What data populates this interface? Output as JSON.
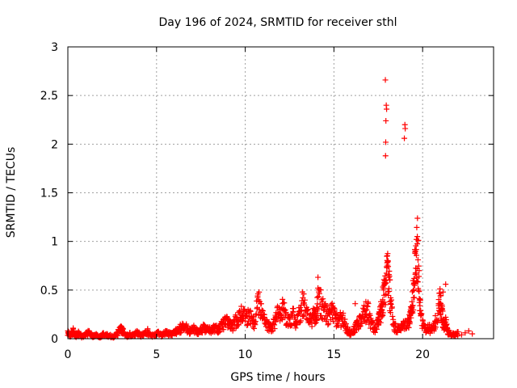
{
  "chart_data": {
    "type": "scatter",
    "title": "Day 196 of 2024, SRMTID for receiver sthl",
    "xlabel": "GPS time / hours",
    "ylabel": "SRMTID / TECUs",
    "xlim": [
      0,
      24
    ],
    "ylim": [
      0,
      3
    ],
    "xticks": [
      0,
      5,
      10,
      15,
      20
    ],
    "xtick_labels": [
      "0",
      "5",
      "10",
      "15",
      "20"
    ],
    "yticks": [
      0,
      0.5,
      1,
      1.5,
      2,
      2.5,
      3
    ],
    "ytick_labels": [
      "0",
      "0.5",
      "1",
      "1.5",
      "2",
      "2.5",
      "3"
    ],
    "grid": true,
    "marker": "+",
    "color": "#ff0000",
    "series": [
      {
        "name": "SRMTID",
        "points": [
          [
            0.0,
            0.08
          ],
          [
            0.15,
            0.05
          ],
          [
            0.3,
            0.1
          ],
          [
            0.45,
            0.04
          ],
          [
            0.6,
            0.07
          ],
          [
            0.8,
            0.03
          ],
          [
            1.0,
            0.06
          ],
          [
            1.2,
            0.08
          ],
          [
            1.4,
            0.04
          ],
          [
            1.6,
            0.05
          ],
          [
            1.8,
            0.03
          ],
          [
            2.0,
            0.06
          ],
          [
            2.2,
            0.05
          ],
          [
            2.4,
            0.04
          ],
          [
            2.6,
            0.03
          ],
          [
            2.8,
            0.07
          ],
          [
            3.0,
            0.13
          ],
          [
            3.1,
            0.1
          ],
          [
            3.3,
            0.04
          ],
          [
            3.5,
            0.06
          ],
          [
            3.7,
            0.05
          ],
          [
            3.9,
            0.08
          ],
          [
            4.1,
            0.05
          ],
          [
            4.3,
            0.06
          ],
          [
            4.5,
            0.09
          ],
          [
            4.7,
            0.04
          ],
          [
            4.9,
            0.05
          ],
          [
            5.1,
            0.07
          ],
          [
            5.3,
            0.05
          ],
          [
            5.5,
            0.08
          ],
          [
            5.7,
            0.07
          ],
          [
            5.9,
            0.06
          ],
          [
            6.1,
            0.09
          ],
          [
            6.3,
            0.12
          ],
          [
            6.5,
            0.15
          ],
          [
            6.7,
            0.13
          ],
          [
            6.9,
            0.1
          ],
          [
            7.1,
            0.12
          ],
          [
            7.3,
            0.09
          ],
          [
            7.5,
            0.11
          ],
          [
            7.7,
            0.14
          ],
          [
            7.9,
            0.12
          ],
          [
            8.1,
            0.1
          ],
          [
            8.3,
            0.13
          ],
          [
            8.5,
            0.11
          ],
          [
            8.7,
            0.16
          ],
          [
            8.9,
            0.2
          ],
          [
            9.1,
            0.18
          ],
          [
            9.3,
            0.14
          ],
          [
            9.5,
            0.22
          ],
          [
            9.7,
            0.26
          ],
          [
            9.9,
            0.3
          ],
          [
            10.1,
            0.24
          ],
          [
            10.3,
            0.28
          ],
          [
            10.5,
            0.18
          ],
          [
            10.7,
            0.44
          ],
          [
            10.9,
            0.36
          ],
          [
            11.1,
            0.2
          ],
          [
            11.3,
            0.15
          ],
          [
            11.5,
            0.12
          ],
          [
            11.7,
            0.22
          ],
          [
            11.9,
            0.32
          ],
          [
            12.1,
            0.36
          ],
          [
            12.3,
            0.27
          ],
          [
            12.5,
            0.2
          ],
          [
            12.7,
            0.28
          ],
          [
            12.9,
            0.18
          ],
          [
            13.1,
            0.32
          ],
          [
            13.3,
            0.46
          ],
          [
            13.5,
            0.26
          ],
          [
            13.7,
            0.2
          ],
          [
            13.9,
            0.3
          ],
          [
            14.0,
            0.22
          ],
          [
            14.1,
            0.52
          ],
          [
            14.3,
            0.4
          ],
          [
            14.5,
            0.32
          ],
          [
            14.7,
            0.26
          ],
          [
            14.9,
            0.3
          ],
          [
            15.1,
            0.24
          ],
          [
            15.3,
            0.22
          ],
          [
            15.5,
            0.24
          ],
          [
            15.7,
            0.12
          ],
          [
            15.9,
            0.08
          ],
          [
            16.1,
            0.1
          ],
          [
            16.3,
            0.18
          ],
          [
            16.5,
            0.22
          ],
          [
            16.7,
            0.3
          ],
          [
            16.9,
            0.33
          ],
          [
            17.1,
            0.18
          ],
          [
            17.3,
            0.12
          ],
          [
            17.5,
            0.22
          ],
          [
            17.6,
            0.27
          ],
          [
            17.7,
            0.36
          ],
          [
            17.8,
            0.5
          ],
          [
            17.9,
            0.6
          ],
          [
            18.0,
            0.78
          ],
          [
            18.1,
            0.66
          ],
          [
            18.2,
            0.42
          ],
          [
            18.4,
            0.15
          ],
          [
            18.6,
            0.12
          ],
          [
            18.8,
            0.14
          ],
          [
            19.0,
            0.18
          ],
          [
            19.2,
            0.2
          ],
          [
            19.3,
            0.24
          ],
          [
            19.4,
            0.38
          ],
          [
            19.5,
            0.56
          ],
          [
            19.6,
            0.9
          ],
          [
            19.7,
            1.05
          ],
          [
            19.8,
            0.7
          ],
          [
            19.9,
            0.24
          ],
          [
            20.1,
            0.12
          ],
          [
            20.3,
            0.14
          ],
          [
            20.5,
            0.1
          ],
          [
            20.7,
            0.18
          ],
          [
            20.9,
            0.36
          ],
          [
            21.0,
            0.44
          ],
          [
            21.1,
            0.3
          ],
          [
            21.2,
            0.12
          ],
          [
            21.3,
            0.22
          ],
          [
            21.4,
            0.1
          ],
          [
            21.6,
            0.06
          ],
          [
            21.8,
            0.05
          ],
          [
            22.0,
            0.07
          ],
          [
            22.2,
            0.04
          ],
          [
            22.4,
            0.06
          ],
          [
            22.6,
            0.08
          ],
          [
            22.8,
            0.05
          ],
          [
            17.9,
            2.66
          ],
          [
            17.95,
            2.4
          ],
          [
            17.97,
            2.36
          ],
          [
            17.93,
            2.24
          ],
          [
            17.92,
            2.02
          ],
          [
            17.91,
            1.88
          ],
          [
            19.0,
            2.2
          ],
          [
            19.02,
            2.16
          ],
          [
            18.97,
            2.06
          ],
          [
            21.3,
            0.56
          ],
          [
            21.15,
            0.48
          ],
          [
            19.65,
            1.02
          ],
          [
            18.05,
            0.8
          ],
          [
            17.85,
            0.56
          ],
          [
            17.75,
            0.4
          ],
          [
            10.75,
            0.4
          ],
          [
            13.25,
            0.42
          ],
          [
            14.15,
            0.48
          ],
          [
            16.2,
            0.36
          ],
          [
            16.8,
            0.38
          ]
        ]
      }
    ]
  }
}
